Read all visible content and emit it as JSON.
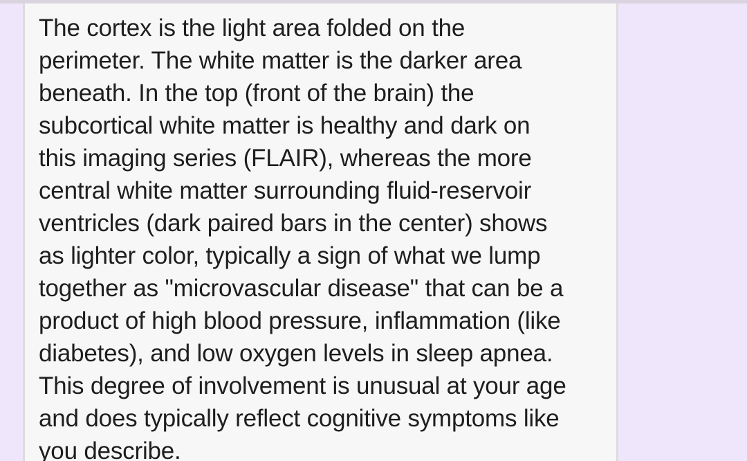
{
  "message": {
    "lines": [
      "The cortex is the light area folded on the",
      "perimeter. The white matter is the darker area",
      "beneath. In the top (front of the brain) the",
      "subcortical white matter is healthy and dark on",
      "this imaging series (FLAIR), whereas the more",
      "central white matter surrounding fluid-reservoir",
      "ventricles (dark paired bars in the center) shows",
      "as lighter color, typically a sign of what we lump",
      "together as \"microvascular disease\" that can be a",
      "product of high blood pressure, inflammation (like",
      "diabetes), and low oxygen levels in sleep apnea.",
      "This degree of involvement is unusual at your age",
      "and does typically reflect cognitive symptoms like",
      "you describe."
    ]
  },
  "colors": {
    "background": "#efe6fb",
    "card": "#f7f7f7",
    "text": "#1e1e1e"
  }
}
